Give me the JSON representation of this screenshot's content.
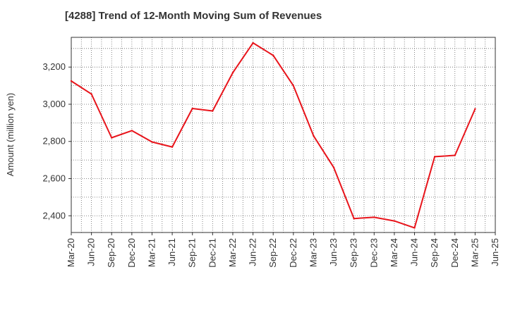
{
  "chart_data": {
    "type": "line",
    "title": "[4288]  Trend of 12-Month Moving Sum of Revenues",
    "xlabel": "",
    "ylabel": "Amount (million yen)",
    "categories": [
      "Mar-20",
      "Jun-20",
      "Sep-20",
      "Dec-20",
      "Mar-21",
      "Jun-21",
      "Sep-21",
      "Dec-21",
      "Mar-22",
      "Jun-22",
      "Sep-22",
      "Dec-22",
      "Mar-23",
      "Jun-23",
      "Sep-23",
      "Dec-23",
      "Mar-24",
      "Jun-24",
      "Sep-24",
      "Dec-24",
      "Mar-25",
      "Jun-25"
    ],
    "series": [
      {
        "name": "",
        "color": "#e8141b",
        "values": [
          3125,
          3055,
          2820,
          2858,
          2797,
          2770,
          2977,
          2964,
          3170,
          3330,
          3263,
          3100,
          2830,
          2660,
          2385,
          2392,
          2372,
          2335,
          2718,
          2725,
          2975,
          null
        ]
      }
    ],
    "ylim": [
      2310,
      3360
    ],
    "yticks": [
      2400,
      2600,
      2800,
      3000,
      3200
    ],
    "ytick_labels": [
      "2,400",
      "2,600",
      "2,800",
      "3,000",
      "3,200"
    ],
    "grid": true,
    "legend": "none"
  }
}
